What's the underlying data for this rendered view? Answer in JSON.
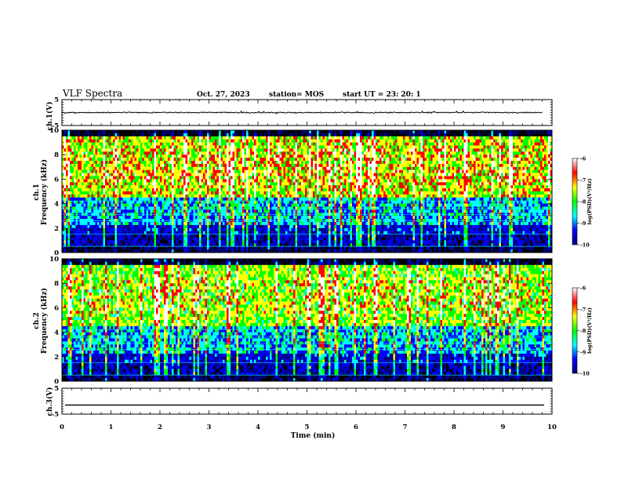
{
  "header": {
    "title": "VLF Spectra",
    "date": "Oct. 27, 2023",
    "station": "station= MOS",
    "start_ut": "start  UT =   23: 20: 1"
  },
  "colorbar_label": "log(PSD)(V²/Hz)",
  "chart_data": [
    {
      "type": "line",
      "name": "ch1-voltage",
      "ylabel": "ch.1(V)",
      "ylim": [
        -5,
        5
      ],
      "yticks": [
        "5",
        "-5"
      ],
      "approx_level": 0,
      "note_visible": "trace near zero with small spikes"
    },
    {
      "type": "heatmap",
      "name": "ch1-spectrogram",
      "ylabel": "ch.1\nFrequency (kHz)",
      "ylim": [
        0,
        10
      ],
      "yticks": [
        "0",
        "2",
        "4",
        "6",
        "8",
        "10"
      ],
      "xlim": [
        0,
        10
      ],
      "colorbar": {
        "range": [
          -10,
          -6
        ],
        "ticks": [
          "-6",
          "-7",
          "-8",
          "-9",
          "-10"
        ]
      }
    },
    {
      "type": "heatmap",
      "name": "ch2-spectrogram",
      "ylabel": "ch.2\nFrequency (kHz)",
      "ylim": [
        0,
        10
      ],
      "yticks": [
        "0",
        "2",
        "4",
        "6",
        "8",
        "10"
      ],
      "xlim": [
        0,
        10
      ],
      "colorbar": {
        "range": [
          -10,
          -6
        ],
        "ticks": [
          "-6",
          "-7",
          "-8",
          "-9",
          "-10"
        ]
      }
    },
    {
      "type": "line",
      "name": "ch3-voltage",
      "ylabel": "ch.3(V)",
      "ylim": [
        -5,
        5
      ],
      "yticks": [
        "5",
        "-5"
      ],
      "approx_level": -1.5
    }
  ],
  "xaxis": {
    "label": "Time (min)",
    "range": [
      0,
      10
    ],
    "ticks": [
      "0",
      "1",
      "2",
      "3",
      "4",
      "5",
      "6",
      "7",
      "8",
      "9",
      "10"
    ]
  },
  "colors": {
    "black": "#000000",
    "navy": "#000080",
    "blue": "#0000ff",
    "cyan": "#00ffff",
    "green": "#00ff00",
    "yellow": "#ffff00",
    "red": "#ff0000",
    "white": "#ffffff"
  }
}
